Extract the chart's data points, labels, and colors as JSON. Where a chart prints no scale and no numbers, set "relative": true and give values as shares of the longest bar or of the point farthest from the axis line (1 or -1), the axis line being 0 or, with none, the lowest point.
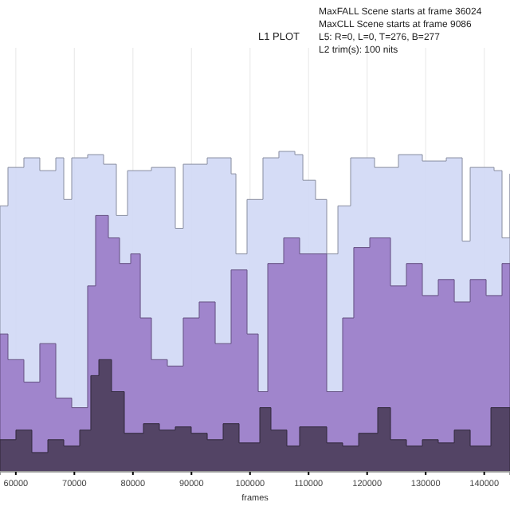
{
  "chart_data": {
    "type": "area",
    "title": "L1 PLOT",
    "xlabel": "frames",
    "relative": true,
    "grid": "x",
    "annotations": [
      "MaxFALL Scene starts at frame 36024",
      "MaxCLL Scene starts at frame 9086",
      "L5: R=0, L=0, T=276, B=277",
      "L2 trim(s): 100 nits"
    ],
    "xlim": [
      57300,
      144400
    ],
    "xticks": [
      60000,
      70000,
      80000,
      90000,
      100000,
      110000,
      120000,
      130000,
      140000
    ],
    "series": [
      {
        "color": "#d0d8f5",
        "x": [
          57300,
          58660,
          61380,
          64100,
          66830,
          68190,
          69550,
          72270,
          74990,
          77170,
          79080,
          83160,
          87240,
          88600,
          92690,
          96770,
          97590,
          99490,
          102210,
          104930,
          107660,
          109020,
          111190,
          113100,
          115010,
          117180,
          121270,
          125350,
          129430,
          133520,
          136240,
          137600,
          141680,
          143040,
          144400
        ],
        "values": [
          0.83,
          0.95,
          0.98,
          0.94,
          0.98,
          0.85,
          0.98,
          0.99,
          0.96,
          0.8,
          0.94,
          0.95,
          0.76,
          0.96,
          0.98,
          0.93,
          0.68,
          0.85,
          0.98,
          1,
          0.99,
          0.91,
          0.85,
          0.68,
          0.83,
          0.98,
          0.95,
          0.99,
          0.97,
          0.98,
          0.72,
          0.95,
          0.94,
          0.73,
          0.93
        ]
      },
      {
        "color": "#9a7bc8",
        "x": [
          57300,
          58660,
          61380,
          64100,
          66830,
          69550,
          72270,
          73630,
          75810,
          77720,
          79620,
          81260,
          83160,
          85880,
          88600,
          91320,
          94050,
          96770,
          99490,
          101400,
          103030,
          105750,
          108470,
          110380,
          113100,
          115820,
          117720,
          120450,
          123990,
          126710,
          129430,
          132150,
          134880,
          137600,
          140320,
          143040,
          144400
        ],
        "values": [
          0.43,
          0.35,
          0.28,
          0.4,
          0.23,
          0.2,
          0.58,
          0.8,
          0.73,
          0.65,
          0.68,
          0.48,
          0.35,
          0.33,
          0.48,
          0.53,
          0.4,
          0.63,
          0.43,
          0.25,
          0.65,
          0.73,
          0.68,
          0.68,
          0.25,
          0.48,
          0.7,
          0.73,
          0.58,
          0.65,
          0.55,
          0.6,
          0.53,
          0.6,
          0.55,
          0.65,
          0.33
        ]
      },
      {
        "color": "#4a3d5a",
        "x": [
          57300,
          60020,
          62740,
          65470,
          68190,
          70910,
          72810,
          74180,
          76350,
          78530,
          81800,
          84520,
          87240,
          89960,
          92690,
          95410,
          98130,
          101670,
          103570,
          106290,
          108470,
          110650,
          113100,
          115820,
          118550,
          121810,
          123990,
          126710,
          129430,
          132150,
          134880,
          137600,
          141140,
          144400
        ],
        "values": [
          0.1,
          0.13,
          0.06,
          0.1,
          0.08,
          0.13,
          0.3,
          0.35,
          0.25,
          0.12,
          0.15,
          0.13,
          0.14,
          0.12,
          0.1,
          0.15,
          0.09,
          0.2,
          0.13,
          0.08,
          0.14,
          0.14,
          0.09,
          0.08,
          0.12,
          0.2,
          0.1,
          0.08,
          0.1,
          0.09,
          0.13,
          0.08,
          0.2,
          0.15
        ]
      }
    ]
  }
}
